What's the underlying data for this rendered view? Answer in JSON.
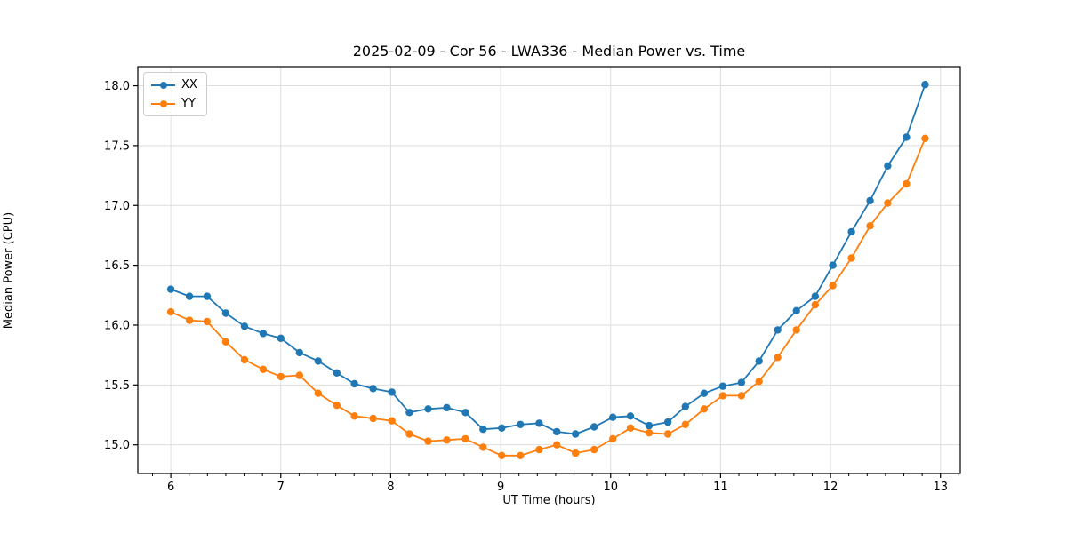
{
  "figure": {
    "background": "#ffffff",
    "spine_color": "#000000",
    "tick_color": "#000000"
  },
  "chart_data": {
    "type": "line",
    "title": "2025-02-09 - Cor 56 - LWA336 - Median Power vs. Time",
    "xlabel": "UT Time (hours)",
    "ylabel": "Median Power (CPU)",
    "grid": true,
    "grid_color": "#dedede",
    "legend_position": "upper-left",
    "xlim": [
      5.7,
      13.18
    ],
    "ylim": [
      14.76,
      18.16
    ],
    "xticks": [
      6,
      7,
      8,
      9,
      10,
      11,
      12,
      13
    ],
    "xtick_labels": [
      "6",
      "7",
      "8",
      "9",
      "10",
      "11",
      "12",
      "13"
    ],
    "yticks": [
      15.0,
      15.5,
      16.0,
      16.5,
      17.0,
      17.5,
      18.0
    ],
    "ytick_labels": [
      "15.0",
      "15.5",
      "16.0",
      "16.5",
      "17.0",
      "17.5",
      "18.0"
    ],
    "x_minor_ticks_per_major": 6,
    "x": [
      6.0,
      6.17,
      6.33,
      6.5,
      6.67,
      6.84,
      7.0,
      7.17,
      7.34,
      7.51,
      7.67,
      7.84,
      8.01,
      8.17,
      8.34,
      8.51,
      8.68,
      8.84,
      9.01,
      9.18,
      9.35,
      9.51,
      9.68,
      9.85,
      10.02,
      10.18,
      10.35,
      10.52,
      10.68,
      10.85,
      11.02,
      11.19,
      11.35,
      11.52,
      11.69,
      11.86,
      12.02,
      12.19,
      12.36,
      12.52,
      12.69,
      12.86
    ],
    "series": [
      {
        "name": "XX",
        "color": "#1f77b4",
        "marker": "circle",
        "values": [
          16.3,
          16.24,
          16.24,
          16.1,
          15.99,
          15.93,
          15.89,
          15.77,
          15.7,
          15.6,
          15.51,
          15.47,
          15.44,
          15.27,
          15.3,
          15.31,
          15.27,
          15.13,
          15.14,
          15.17,
          15.18,
          15.11,
          15.09,
          15.15,
          15.23,
          15.24,
          15.16,
          15.19,
          15.32,
          15.43,
          15.49,
          15.52,
          15.7,
          15.96,
          16.12,
          16.24,
          16.5,
          16.78,
          17.04,
          17.33,
          17.57,
          18.01
        ]
      },
      {
        "name": "YY",
        "color": "#ff7f0e",
        "marker": "circle",
        "values": [
          16.11,
          16.04,
          16.03,
          15.86,
          15.71,
          15.63,
          15.57,
          15.58,
          15.43,
          15.33,
          15.24,
          15.22,
          15.2,
          15.09,
          15.03,
          15.04,
          15.05,
          14.98,
          14.91,
          14.91,
          14.96,
          15.0,
          14.93,
          14.96,
          15.05,
          15.14,
          15.1,
          15.09,
          15.17,
          15.3,
          15.41,
          15.41,
          15.53,
          15.73,
          15.96,
          16.17,
          16.33,
          16.56,
          16.83,
          17.02,
          17.18,
          17.56
        ]
      }
    ]
  }
}
